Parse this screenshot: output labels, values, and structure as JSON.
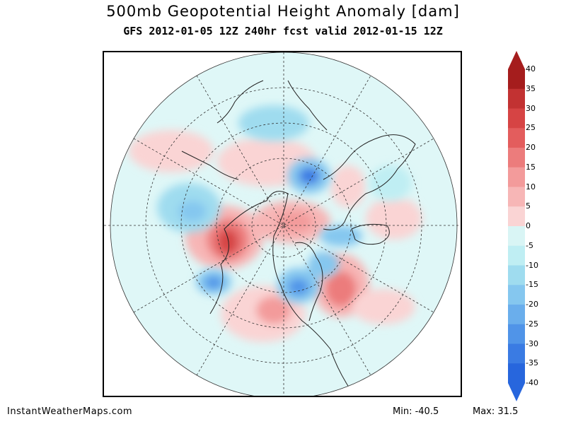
{
  "header": {
    "title": "500mb Geopotential Height Anomaly [dam]",
    "subtitle": "GFS 2012-01-05 12Z 240hr fcst valid 2012-01-15 12Z"
  },
  "colorbar": {
    "labels": [
      "40",
      "35",
      "30",
      "25",
      "20",
      "15",
      "10",
      "5",
      "0",
      "-5",
      "-10",
      "-15",
      "-20",
      "-25",
      "-30",
      "-35",
      "-40"
    ],
    "colors": [
      "#a51d1d",
      "#c23232",
      "#d64444",
      "#e35d5d",
      "#ec7c7c",
      "#f39b9b",
      "#f7b6b6",
      "#fad4d4",
      "#d9f5f5",
      "#bfeef3",
      "#9fdcef",
      "#85c7ef",
      "#6aaeec",
      "#5094e8",
      "#3a7be3",
      "#2766dd"
    ]
  },
  "footer": {
    "site": "InstantWeatherMaps.com",
    "min_text": "Min: -40.5",
    "max_text": "Max: 31.5"
  },
  "map": {
    "projection": "north-polar-stereographic",
    "background_color": "#dff7f7",
    "positive_color": "#f7b6b6",
    "negative_color": "#6aaeec"
  }
}
